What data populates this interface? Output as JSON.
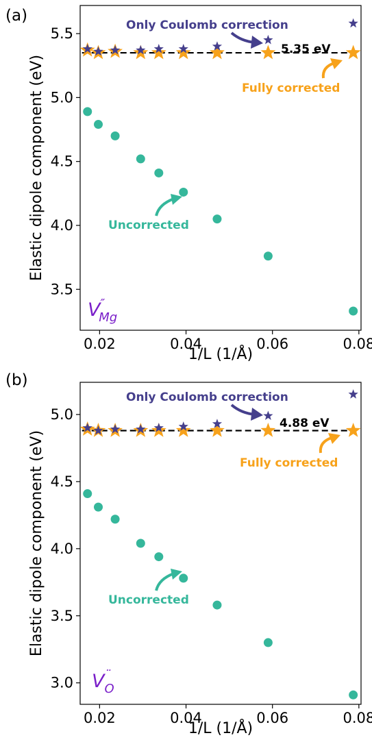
{
  "chart_data": [
    {
      "type": "scatter",
      "panel_label": "(a)",
      "xlabel": "1/L (1/Å)",
      "ylabel": "Elastic dipole component (eV)",
      "xlim": [
        0.0155,
        0.0805
      ],
      "ylim": [
        3.18,
        5.72
      ],
      "xticks": [
        0.02,
        0.04,
        0.06,
        0.08
      ],
      "xtick_labels": [
        "0.02",
        "0.04",
        "0.06",
        "0.08"
      ],
      "yticks": [
        3.5,
        4.0,
        4.5,
        5.0,
        5.5
      ],
      "ytick_labels": [
        "3.5",
        "4.0",
        "4.5",
        "5.0",
        "5.5"
      ],
      "reference_value": 5.35,
      "reference_label": "5.35 eV",
      "defect_symbol": "V",
      "defect_superscript": "″",
      "defect_subscript": "Mg",
      "series": [
        {
          "name": "Uncorrected",
          "marker": "circle",
          "color": "#35b79b",
          "x": [
            0.0172,
            0.0197,
            0.0236,
            0.0295,
            0.0337,
            0.0394,
            0.0472,
            0.059,
            0.0787
          ],
          "y": [
            4.89,
            4.79,
            4.7,
            4.52,
            4.41,
            4.26,
            4.05,
            3.76,
            3.33
          ]
        },
        {
          "name": "Only Coulomb correction",
          "marker": "star-small",
          "color": "#453f8c",
          "x": [
            0.0172,
            0.0197,
            0.0236,
            0.0295,
            0.0337,
            0.0394,
            0.0472,
            0.059,
            0.0787
          ],
          "y": [
            5.38,
            5.36,
            5.37,
            5.37,
            5.38,
            5.38,
            5.4,
            5.45,
            5.58
          ]
        },
        {
          "name": "Fully corrected",
          "marker": "star-large",
          "color": "#f7a21b",
          "x": [
            0.0172,
            0.0197,
            0.0236,
            0.0295,
            0.0337,
            0.0394,
            0.0472,
            0.059,
            0.0787
          ],
          "y": [
            5.37,
            5.35,
            5.36,
            5.35,
            5.35,
            5.35,
            5.35,
            5.35,
            5.35
          ]
        }
      ]
    },
    {
      "type": "scatter",
      "panel_label": "(b)",
      "xlabel": "1/L (1/Å)",
      "ylabel": "Elastic dipole component (eV)",
      "xlim": [
        0.0155,
        0.0805
      ],
      "ylim": [
        2.84,
        5.24
      ],
      "xticks": [
        0.02,
        0.04,
        0.06,
        0.08
      ],
      "xtick_labels": [
        "0.02",
        "0.04",
        "0.06",
        "0.08"
      ],
      "yticks": [
        3.0,
        3.5,
        4.0,
        4.5,
        5.0
      ],
      "ytick_labels": [
        "3.0",
        "3.5",
        "4.0",
        "4.5",
        "5.0"
      ],
      "reference_value": 4.88,
      "reference_label": "4.88 eV",
      "defect_symbol": "V",
      "defect_superscript": "¨",
      "defect_subscript": "O",
      "series": [
        {
          "name": "Uncorrected",
          "marker": "circle",
          "color": "#35b79b",
          "x": [
            0.0172,
            0.0197,
            0.0236,
            0.0295,
            0.0337,
            0.0394,
            0.0472,
            0.059,
            0.0787
          ],
          "y": [
            4.41,
            4.31,
            4.22,
            4.04,
            3.94,
            3.78,
            3.58,
            3.3,
            2.91
          ]
        },
        {
          "name": "Only Coulomb correction",
          "marker": "star-small",
          "color": "#453f8c",
          "x": [
            0.0172,
            0.0197,
            0.0236,
            0.0295,
            0.0337,
            0.0394,
            0.0472,
            0.059,
            0.0787
          ],
          "y": [
            4.9,
            4.88,
            4.89,
            4.89,
            4.9,
            4.91,
            4.93,
            4.99,
            5.15
          ]
        },
        {
          "name": "Fully corrected",
          "marker": "star-large",
          "color": "#f7a21b",
          "x": [
            0.0172,
            0.0197,
            0.0236,
            0.0295,
            0.0337,
            0.0394,
            0.0472,
            0.059,
            0.0787
          ],
          "y": [
            4.89,
            4.88,
            4.88,
            4.88,
            4.88,
            4.88,
            4.88,
            4.88,
            4.88
          ]
        }
      ]
    }
  ],
  "colors": {
    "uncorrected": "#35b79b",
    "coulomb": "#453f8c",
    "fully": "#f7a21b",
    "defect_label": "#7a1fc9"
  }
}
